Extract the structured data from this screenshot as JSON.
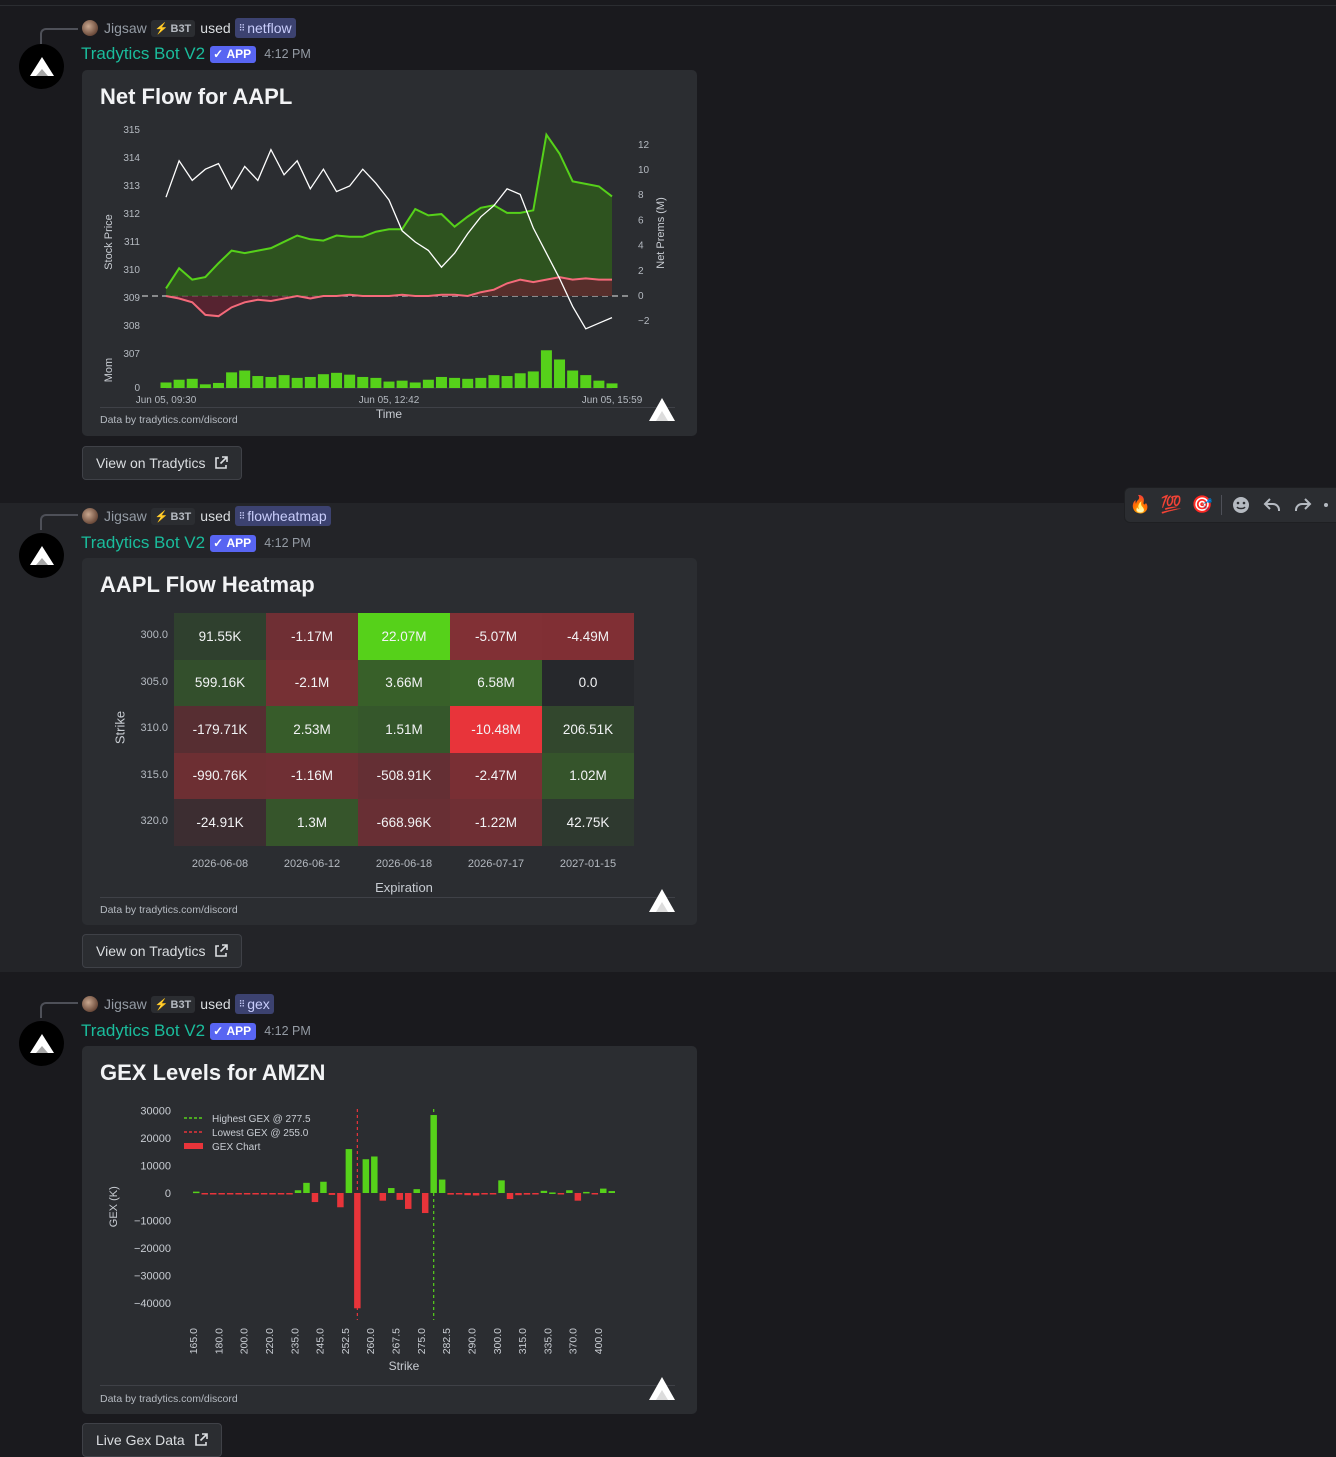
{
  "messages": [
    {
      "reply_user": "Jigsaw",
      "reply_tag": "B3T",
      "reply_used": "used",
      "command": "netflow",
      "bot_name": "Tradytics Bot V2",
      "app_badge": "APP",
      "time": "4:12 PM",
      "embed_title": "Net Flow for AAPL",
      "footer": "Data by tradytics.com/discord",
      "button_label": "View on Tradytics"
    },
    {
      "reply_user": "Jigsaw",
      "reply_tag": "B3T",
      "reply_used": "used",
      "command": "flowheatmap",
      "bot_name": "Tradytics Bot V2",
      "app_badge": "APP",
      "time": "4:12 PM",
      "embed_title": "AAPL Flow Heatmap",
      "footer": "Data by tradytics.com/discord",
      "button_label": "View on Tradytics"
    },
    {
      "reply_user": "Jigsaw",
      "reply_tag": "B3T",
      "reply_used": "used",
      "command": "gex",
      "bot_name": "Tradytics Bot V2",
      "app_badge": "APP",
      "time": "4:12 PM",
      "embed_title": "GEX Levels for AMZN",
      "footer": "Data by tradytics.com/discord",
      "button_label": "Live Gex Data"
    }
  ],
  "reaction_bar": {
    "emojis": [
      "🔥",
      "💯",
      "🎯"
    ],
    "icons": [
      "add-reaction-icon",
      "reply-icon",
      "forward-icon",
      "more-icon"
    ]
  },
  "colors": {
    "background": "#1a1a1e",
    "embed": "#2b2d31",
    "bot_name": "#1abc9c",
    "app_badge": "#5865f2",
    "positive": "#56d11a",
    "negative": "#e8343a",
    "net_prem_line": "#f46a7a"
  },
  "chart_data": [
    {
      "type": "line",
      "title": "Net Flow for AAPL",
      "xlabel": "Time",
      "ylabel": "Stock Price",
      "y2label": "Net Prems (M)",
      "volume_label": "Mom",
      "x_ticks": [
        "Jun 05, 09:30",
        "Jun 05, 12:42",
        "Jun 05, 15:59"
      ],
      "y_ticks": [
        315,
        314,
        313,
        312,
        311,
        310,
        309,
        308,
        307
      ],
      "y2_ticks": [
        12,
        10,
        8,
        6,
        4,
        2,
        0,
        -2
      ],
      "volume_y_ticks": [
        0
      ],
      "ylim": [
        307,
        315
      ],
      "y2lim": [
        -2,
        12
      ],
      "series": [
        {
          "name": "Stock Price",
          "color": "#ffffff",
          "values": [
            312.6,
            313.9,
            313.2,
            313.6,
            313.8,
            312.9,
            313.7,
            313.2,
            314.3,
            313.4,
            313.9,
            312.9,
            313.6,
            312.8,
            313.0,
            313.6,
            313.1,
            312.5,
            311.4,
            311.0,
            310.7,
            310.1,
            310.6,
            311.3,
            311.9,
            312.3,
            312.9,
            312.7,
            311.5,
            310.6,
            309.7,
            308.7,
            307.9,
            308.1,
            308.3
          ]
        },
        {
          "name": "Net Calls",
          "color": "#56d11a",
          "values": [
            0.6,
            2.2,
            1.3,
            1.5,
            2.6,
            3.6,
            3.4,
            3.6,
            3.8,
            4.3,
            4.8,
            4.5,
            4.4,
            4.8,
            4.7,
            4.7,
            5.1,
            5.3,
            5.3,
            6.9,
            6.4,
            6.5,
            5.5,
            6.3,
            7.0,
            7.2,
            6.6,
            6.6,
            6.8,
            12.8,
            11.3,
            9.1,
            8.9,
            8.7,
            7.9
          ]
        },
        {
          "name": "Net Puts",
          "color": "#f46a7a",
          "values": [
            0.0,
            -0.2,
            -0.5,
            -1.5,
            -1.6,
            -0.9,
            -0.5,
            -0.3,
            -0.4,
            -0.2,
            0.0,
            -0.2,
            0.0,
            0.0,
            0.1,
            0.0,
            0.0,
            0.0,
            0.1,
            0.0,
            0.0,
            0.1,
            0.1,
            0.0,
            0.3,
            0.5,
            1.0,
            1.3,
            1.1,
            1.3,
            1.5,
            1.3,
            1.4,
            1.3,
            1.3
          ]
        }
      ],
      "volume_values": [
        1.2,
        1.8,
        2.0,
        0.8,
        1.1,
        3.4,
        3.8,
        2.6,
        2.4,
        2.8,
        2.2,
        2.4,
        3.0,
        3.3,
        2.9,
        2.4,
        2.2,
        1.4,
        1.6,
        1.2,
        1.8,
        2.4,
        2.2,
        2.0,
        2.2,
        2.8,
        2.6,
        3.2,
        3.6,
        8.2,
        6.2,
        3.8,
        2.8,
        1.6,
        1.0
      ]
    },
    {
      "type": "heatmap",
      "title": "AAPL Flow Heatmap",
      "xlabel": "Expiration",
      "ylabel": "Strike",
      "columns": [
        "2026-06-08",
        "2026-06-12",
        "2026-06-18",
        "2026-07-17",
        "2027-01-15"
      ],
      "rows": [
        "300.0",
        "305.0",
        "310.0",
        "315.0",
        "320.0"
      ],
      "values": [
        [
          91550,
          -1170000,
          22070000,
          -5070000,
          -4490000
        ],
        [
          599160,
          -2100000,
          3660000,
          6580000,
          0
        ],
        [
          -179710,
          2530000,
          1510000,
          -10480000,
          206510
        ],
        [
          -990760,
          -1160000,
          -508910,
          -2470000,
          1020000
        ],
        [
          -24910,
          1300000,
          -668960,
          -1220000,
          42750
        ]
      ],
      "labels": [
        [
          "91.55K",
          "-1.17M",
          "22.07M",
          "-5.07M",
          "-4.49M"
        ],
        [
          "599.16K",
          "-2.1M",
          "3.66M",
          "6.58M",
          "0.0"
        ],
        [
          "-179.71K",
          "2.53M",
          "1.51M",
          "-10.48M",
          "206.51K"
        ],
        [
          "-990.76K",
          "-1.16M",
          "-508.91K",
          "-2.47M",
          "1.02M"
        ],
        [
          "-24.91K",
          "1.3M",
          "-668.96K",
          "-1.22M",
          "42.75K"
        ]
      ]
    },
    {
      "type": "bar",
      "title": "GEX Levels for AMZN",
      "xlabel": "Strike",
      "ylabel": "GEX (K)",
      "ylim": [
        -42000,
        32000
      ],
      "y_ticks": [
        30000,
        20000,
        10000,
        0,
        -10000,
        -20000,
        -30000,
        -40000
      ],
      "x_tick_labels": [
        "165.0",
        "180.0",
        "200.0",
        "220.0",
        "235.0",
        "245.0",
        "252.5",
        "260.0",
        "267.5",
        "275.0",
        "282.5",
        "290.0",
        "300.0",
        "315.0",
        "335.0",
        "370.0",
        "400.0"
      ],
      "legend": [
        "Highest GEX @ 277.5",
        "Lowest GEX @ 255.0",
        "GEX Chart"
      ],
      "legend_position": "top-left",
      "highest_strike": "277.5",
      "lowest_strike": "255.0",
      "values": [
        500,
        -300,
        -200,
        -400,
        -200,
        -300,
        -200,
        -300,
        -300,
        -200,
        -300,
        -200,
        1000,
        3700,
        -3300,
        4100,
        -700,
        -5200,
        16000,
        -42000,
        12300,
        13300,
        -2800,
        1800,
        -2500,
        -5800,
        1400,
        -7300,
        28400,
        4900,
        -600,
        -400,
        -800,
        -900,
        -200,
        -400,
        4600,
        -2200,
        -800,
        -600,
        -300,
        800,
        200,
        -500,
        1000,
        -2800,
        400,
        -300,
        1600,
        700
      ]
    }
  ]
}
